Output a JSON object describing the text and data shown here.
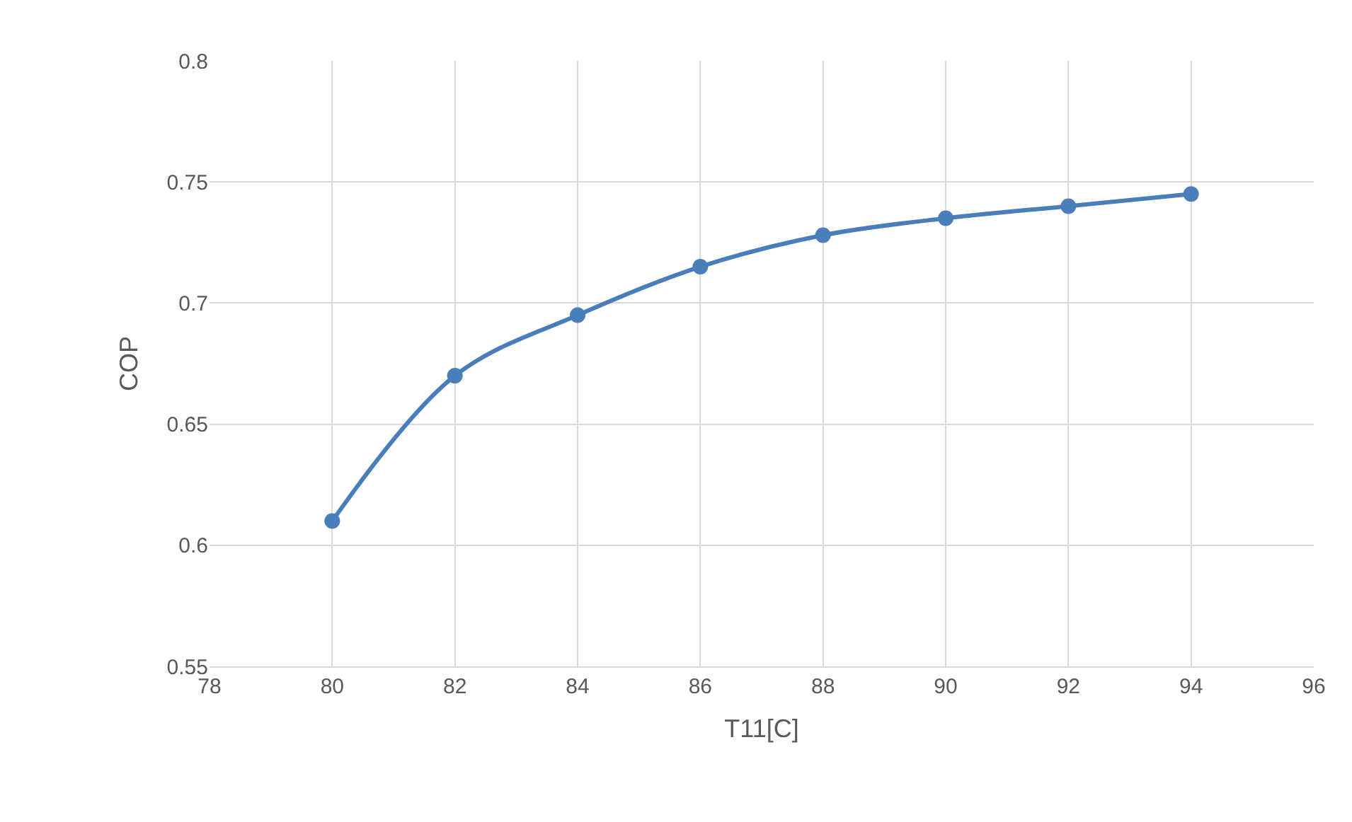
{
  "chart_data": {
    "type": "line",
    "xlabel": "T11[C]",
    "ylabel": "COP",
    "x": [
      80,
      82,
      84,
      86,
      88,
      90,
      92,
      94
    ],
    "series": [
      {
        "color": "#4a7ebb",
        "values": [
          0.61,
          0.67,
          0.695,
          0.715,
          0.728,
          0.735,
          0.74,
          0.745
        ]
      }
    ],
    "xlim": [
      78,
      96
    ],
    "xticks": [
      78,
      80,
      82,
      84,
      86,
      88,
      90,
      92,
      94,
      96
    ],
    "ylim": [
      0.55,
      0.8
    ],
    "yticks": [
      0.55,
      0.6,
      0.65,
      0.7,
      0.75,
      0.8
    ],
    "grid": true,
    "marker": "circle",
    "line_style": "solid"
  }
}
